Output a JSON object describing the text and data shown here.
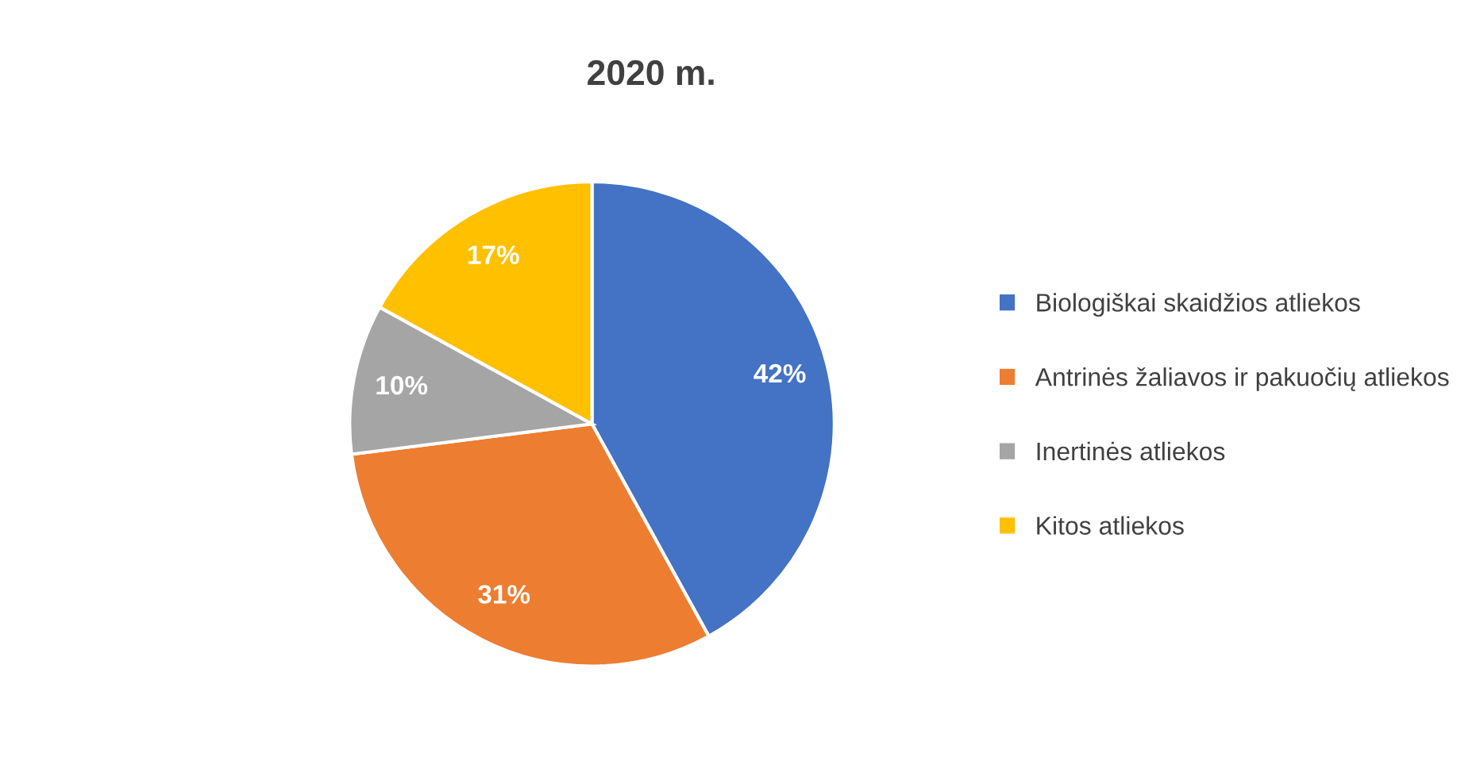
{
  "chart_data": {
    "type": "pie",
    "title": "2020 m.",
    "categories": [
      "Biologiškai skaidžios atliekos",
      "Antrinės žaliavos ir pakuočių atliekos",
      "Inertinės atliekos",
      "Kitos atliekos"
    ],
    "values": [
      42,
      31,
      10,
      17
    ],
    "colors": [
      "#4472c4",
      "#ed7d31",
      "#a5a5a5",
      "#ffc000"
    ],
    "value_labels": [
      "42%",
      "31%",
      "10%",
      "17%"
    ],
    "legend": "right"
  }
}
